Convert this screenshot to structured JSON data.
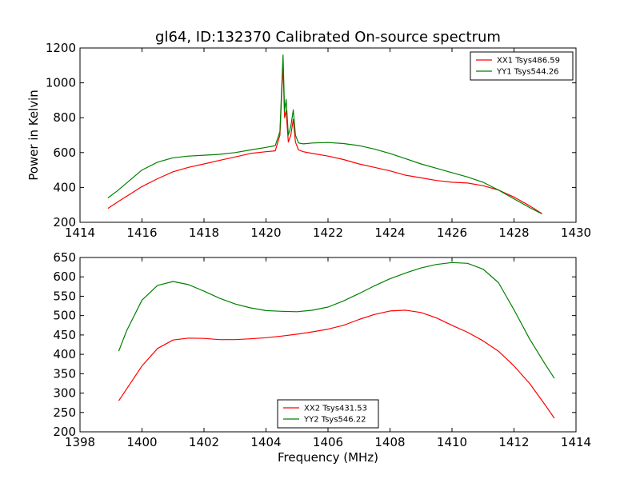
{
  "chart_data": [
    {
      "type": "line",
      "title": "gl64, ID:132370 Calibrated On-source spectrum",
      "xlabel": "",
      "ylabel": "Power in Kelvin",
      "xlim": [
        1414,
        1430
      ],
      "ylim": [
        200,
        1200
      ],
      "xticks": [
        "1414",
        "1416",
        "1418",
        "1420",
        "1422",
        "1424",
        "1426",
        "1428",
        "1430"
      ],
      "yticks": [
        "200",
        "400",
        "600",
        "800",
        "1000",
        "1200"
      ],
      "legend_position": "top-right",
      "grid": false,
      "series": [
        {
          "name": "XX1 Tsys486.59",
          "color": "#ff0000",
          "x": [
            1414.9,
            1415.2,
            1415.6,
            1416.0,
            1416.5,
            1417.0,
            1417.5,
            1418.0,
            1418.5,
            1419.0,
            1419.5,
            1420.0,
            1420.3,
            1420.45,
            1420.55,
            1420.6,
            1420.65,
            1420.72,
            1420.8,
            1420.88,
            1420.95,
            1421.05,
            1421.2,
            1421.5,
            1422.0,
            1422.5,
            1423.0,
            1423.5,
            1424.0,
            1424.5,
            1425.0,
            1425.5,
            1426.0,
            1426.5,
            1427.0,
            1427.5,
            1428.0,
            1428.5,
            1428.9
          ],
          "y": [
            280,
            315,
            360,
            405,
            450,
            490,
            515,
            535,
            555,
            575,
            595,
            605,
            610,
            700,
            1110,
            800,
            840,
            660,
            700,
            790,
            660,
            615,
            605,
            595,
            580,
            560,
            535,
            515,
            495,
            470,
            455,
            440,
            430,
            425,
            410,
            385,
            345,
            295,
            250
          ]
        },
        {
          "name": "YY1 Tsys544.26",
          "color": "#008000",
          "x": [
            1414.9,
            1415.2,
            1415.6,
            1416.0,
            1416.5,
            1417.0,
            1417.5,
            1418.0,
            1418.5,
            1419.0,
            1419.5,
            1420.0,
            1420.3,
            1420.45,
            1420.55,
            1420.6,
            1420.65,
            1420.72,
            1420.8,
            1420.88,
            1420.95,
            1421.05,
            1421.2,
            1421.5,
            1422.0,
            1422.5,
            1423.0,
            1423.5,
            1424.0,
            1424.5,
            1425.0,
            1425.5,
            1426.0,
            1426.5,
            1427.0,
            1427.5,
            1428.0,
            1428.5,
            1428.9
          ],
          "y": [
            340,
            380,
            440,
            500,
            545,
            570,
            580,
            585,
            590,
            600,
            615,
            630,
            640,
            720,
            1160,
            840,
            905,
            700,
            750,
            845,
            700,
            655,
            650,
            655,
            658,
            652,
            640,
            620,
            595,
            565,
            535,
            510,
            485,
            460,
            430,
            385,
            335,
            285,
            248
          ]
        }
      ]
    },
    {
      "type": "line",
      "title": "",
      "xlabel": "Frequency (MHz)",
      "ylabel": "",
      "xlim": [
        1398,
        1414
      ],
      "ylim": [
        200,
        650
      ],
      "xticks": [
        "1398",
        "1400",
        "1402",
        "1404",
        "1406",
        "1408",
        "1410",
        "1412",
        "1414"
      ],
      "yticks": [
        "200",
        "250",
        "300",
        "350",
        "400",
        "450",
        "500",
        "550",
        "600",
        "650"
      ],
      "legend_position": "bottom-center",
      "grid": false,
      "series": [
        {
          "name": "XX2 Tsys431.53",
          "color": "#ff0000",
          "x": [
            1399.25,
            1399.5,
            1400.0,
            1400.5,
            1401.0,
            1401.5,
            1402.0,
            1402.5,
            1403.0,
            1403.5,
            1404.0,
            1404.5,
            1405.0,
            1405.5,
            1406.0,
            1406.5,
            1407.0,
            1407.5,
            1408.0,
            1408.5,
            1409.0,
            1409.5,
            1410.0,
            1410.5,
            1411.0,
            1411.5,
            1412.0,
            1412.5,
            1413.0,
            1413.3
          ],
          "y": [
            280,
            310,
            370,
            415,
            437,
            442,
            441,
            438,
            438,
            440,
            443,
            447,
            452,
            458,
            465,
            475,
            490,
            503,
            512,
            514,
            508,
            494,
            475,
            457,
            435,
            408,
            370,
            325,
            270,
            235
          ]
        },
        {
          "name": "YY2 Tsys546.22",
          "color": "#008000",
          "x": [
            1399.25,
            1399.5,
            1400.0,
            1400.5,
            1401.0,
            1401.5,
            1402.0,
            1402.5,
            1403.0,
            1403.5,
            1404.0,
            1404.5,
            1405.0,
            1405.5,
            1406.0,
            1406.5,
            1407.0,
            1407.5,
            1408.0,
            1408.5,
            1409.0,
            1409.5,
            1410.0,
            1410.5,
            1411.0,
            1411.5,
            1412.0,
            1412.5,
            1413.0,
            1413.3
          ],
          "y": [
            408,
            460,
            540,
            578,
            588,
            580,
            563,
            545,
            530,
            520,
            513,
            511,
            510,
            514,
            522,
            538,
            557,
            577,
            595,
            610,
            623,
            632,
            637,
            635,
            620,
            585,
            515,
            440,
            375,
            338
          ]
        }
      ]
    }
  ]
}
